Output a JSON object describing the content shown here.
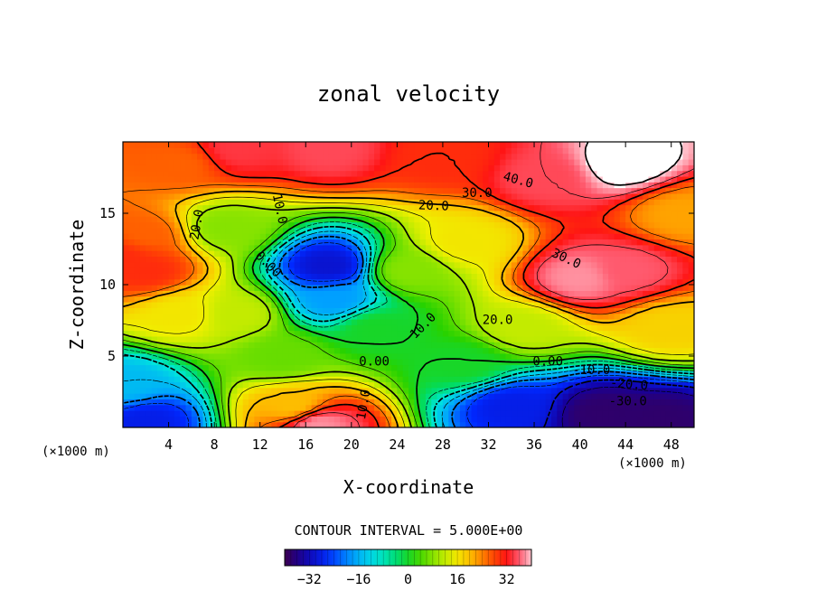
{
  "chart_data": {
    "type": "heatmap",
    "title": "zonal velocity",
    "xlabel": "X-coordinate",
    "ylabel": "Z-coordinate",
    "x_unit_left": "(×1000 m)",
    "x_unit_right": "(×1000 m)",
    "xlim": [
      0,
      50
    ],
    "ylim": [
      0,
      20
    ],
    "x_ticks": [
      4,
      8,
      12,
      16,
      20,
      24,
      28,
      32,
      36,
      40,
      44,
      48
    ],
    "y_ticks": [
      5,
      10,
      15
    ],
    "contour_interval_text": "CONTOUR INTERVAL = 5.000E+00",
    "contour_interval": 5,
    "colorbar": {
      "min": -40,
      "max": 40,
      "ticks": [
        -32,
        -16,
        0,
        16,
        32
      ]
    },
    "contour_labels": [
      {
        "text": "20.0",
        "x": 6.5,
        "y": 14.2,
        "angle": 80
      },
      {
        "text": "10.0",
        "x": 13.7,
        "y": 15.3,
        "angle": -78
      },
      {
        "text": "0.00",
        "x": 12.7,
        "y": 11.4,
        "angle": -45
      },
      {
        "text": "20.0",
        "x": 27.2,
        "y": 15.5,
        "angle": -2
      },
      {
        "text": "30.0",
        "x": 31,
        "y": 16.4,
        "angle": 0
      },
      {
        "text": "40.0",
        "x": 34.6,
        "y": 17.3,
        "angle": -15
      },
      {
        "text": "30.0",
        "x": 38.8,
        "y": 11.8,
        "angle": -25
      },
      {
        "text": "20.0",
        "x": 32.8,
        "y": 7.5,
        "angle": 0
      },
      {
        "text": "10.0",
        "x": 26.3,
        "y": 7.1,
        "angle": 45
      },
      {
        "text": "0.00",
        "x": 22,
        "y": 4.6,
        "angle": 0
      },
      {
        "text": "0.00",
        "x": 37.2,
        "y": 4.6,
        "angle": 0
      },
      {
        "text": "-10.0",
        "x": 41,
        "y": 4.0,
        "angle": 0
      },
      {
        "text": "-20.0",
        "x": 44.3,
        "y": 3.0,
        "angle": -5
      },
      {
        "text": "-30.0",
        "x": 44.2,
        "y": 1.8,
        "angle": 0
      },
      {
        "text": "10.0",
        "x": 21.1,
        "y": 1.6,
        "angle": 80
      }
    ],
    "field_features": [
      {
        "x": 0,
        "y": 12,
        "value": 30
      },
      {
        "x": 2,
        "y": 11,
        "value": 30
      },
      {
        "x": 2,
        "y": 13.5,
        "value": 26
      },
      {
        "x": 18,
        "y": 11.3,
        "value": -30
      },
      {
        "x": 18.5,
        "y": 9,
        "value": -18
      },
      {
        "x": 40,
        "y": 10.5,
        "value": 38
      },
      {
        "x": 44,
        "y": 11,
        "value": 36
      },
      {
        "x": 37,
        "y": 17.5,
        "value": 35
      },
      {
        "x": 44,
        "y": 18.5,
        "value": 42
      },
      {
        "x": 18,
        "y": 19.5,
        "value": 35
      },
      {
        "x": 10,
        "y": 19.5,
        "value": 34
      },
      {
        "x": 5,
        "y": 18.5,
        "value": 26
      },
      {
        "x": 28,
        "y": 19,
        "value": 30
      },
      {
        "x": 17,
        "y": 0.3,
        "value": 38
      },
      {
        "x": 15,
        "y": 1.5,
        "value": 20
      },
      {
        "x": 14,
        "y": 5,
        "value": 6
      },
      {
        "x": 2,
        "y": 0.5,
        "value": -28
      },
      {
        "x": 0,
        "y": 3,
        "value": -15
      },
      {
        "x": 42,
        "y": 1,
        "value": -38
      },
      {
        "x": 47,
        "y": 0.5,
        "value": -38
      },
      {
        "x": 34,
        "y": 1.5,
        "value": -28
      },
      {
        "x": 22,
        "y": 7,
        "value": 0
      },
      {
        "x": 25,
        "y": 11,
        "value": 8
      },
      {
        "x": 10,
        "y": 8,
        "value": 12
      },
      {
        "x": 5,
        "y": 8,
        "value": 16
      },
      {
        "x": 30,
        "y": 13,
        "value": 16
      },
      {
        "x": 35,
        "y": 7,
        "value": 12
      },
      {
        "x": 48,
        "y": 7,
        "value": 18
      },
      {
        "x": 49,
        "y": 15,
        "value": 22
      },
      {
        "x": 9,
        "y": 14,
        "value": 8
      },
      {
        "x": 30,
        "y": 4.5,
        "value": 0
      }
    ]
  }
}
